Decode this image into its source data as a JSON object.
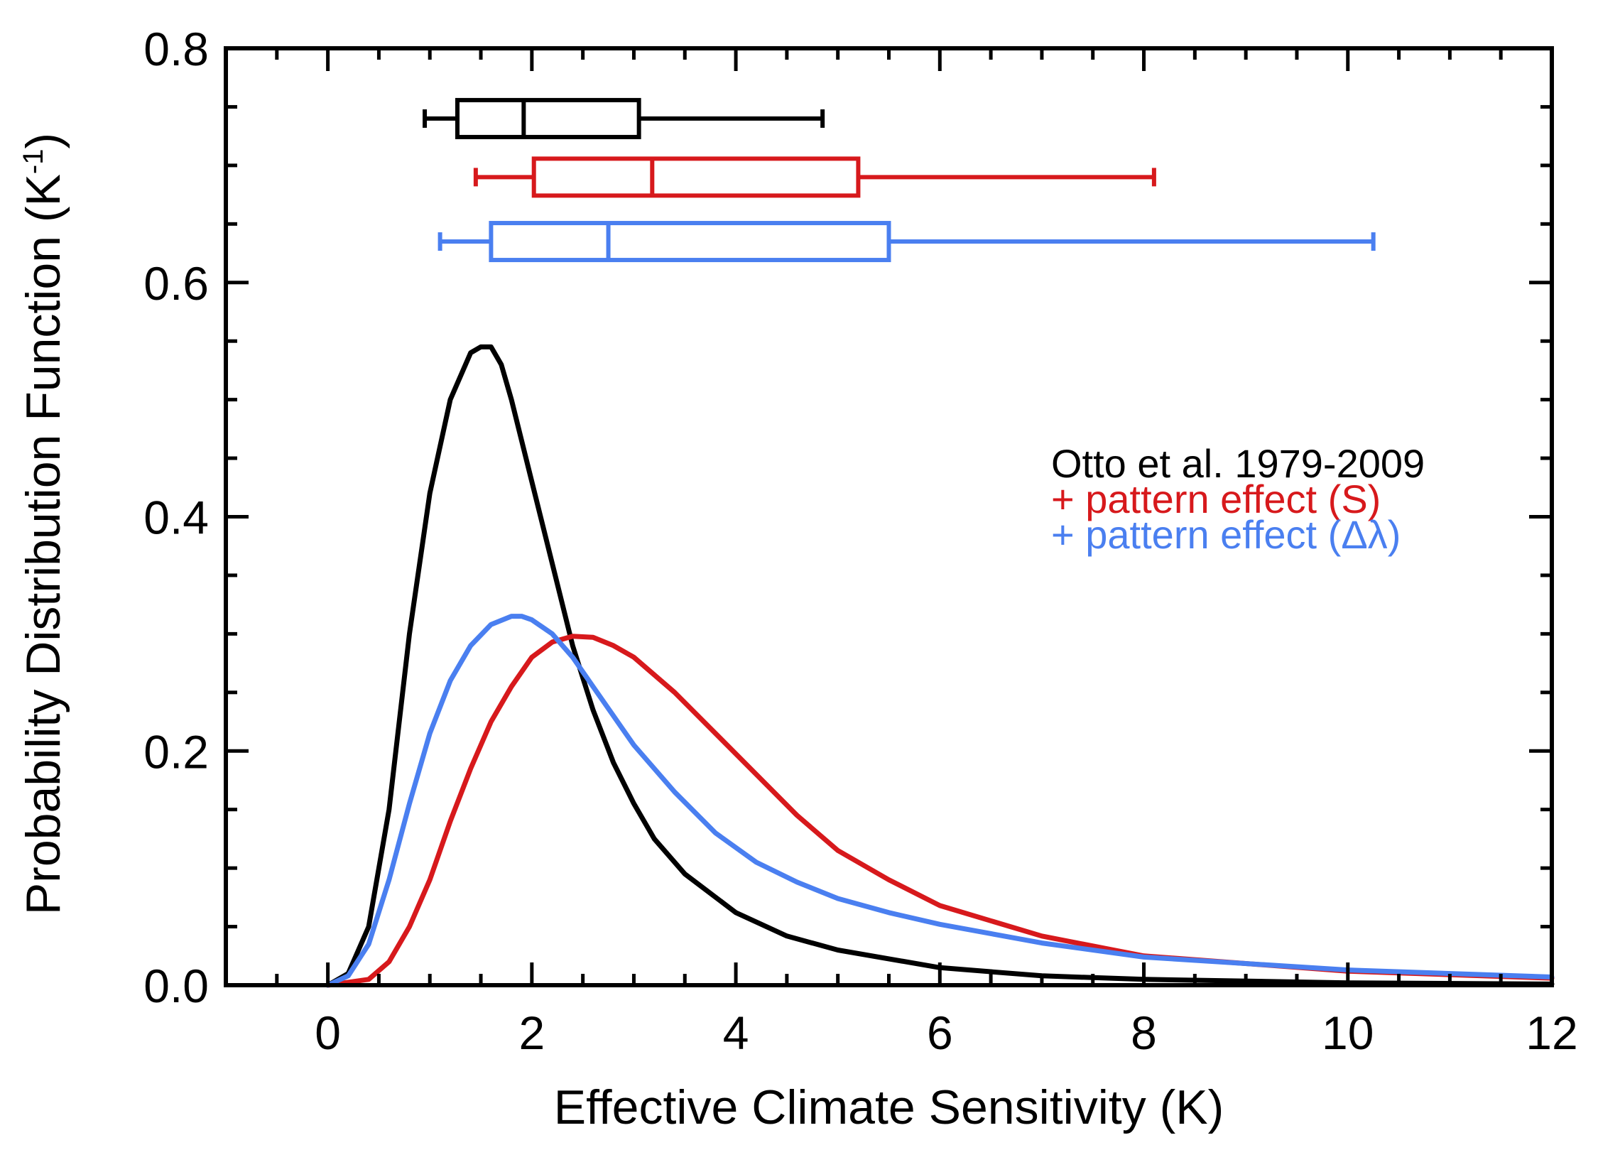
{
  "chart_data": {
    "type": "line",
    "title": "",
    "xlabel": "Effective Climate Sensitivity (K)",
    "ylabel": "Probability Distribution Function (K",
    "ylabel_sup": "-1",
    "ylabel_close": ")",
    "xlim": [
      -1,
      12
    ],
    "ylim": [
      0,
      0.8
    ],
    "xticks": [
      0,
      2,
      4,
      6,
      8,
      10,
      12
    ],
    "xtick_labels": [
      "0",
      "2",
      "4",
      "6",
      "8",
      "10",
      "12"
    ],
    "yticks": [
      0,
      0.2,
      0.4,
      0.6,
      0.8
    ],
    "ytick_labels": [
      "0.0",
      "0.2",
      "0.4",
      "0.6",
      "0.8"
    ],
    "grid": false,
    "legend_position": "right",
    "series": [
      {
        "name": "Otto et al. 1979-2009",
        "color": "#000000",
        "x": [
          0,
          0.2,
          0.4,
          0.6,
          0.8,
          1.0,
          1.2,
          1.4,
          1.5,
          1.6,
          1.7,
          1.8,
          2.0,
          2.2,
          2.4,
          2.6,
          2.8,
          3.0,
          3.2,
          3.5,
          4.0,
          4.5,
          5.0,
          6.0,
          7.0,
          8.0,
          10.0,
          12.0
        ],
        "y": [
          0,
          0.01,
          0.05,
          0.15,
          0.3,
          0.42,
          0.5,
          0.54,
          0.545,
          0.545,
          0.53,
          0.5,
          0.43,
          0.36,
          0.29,
          0.235,
          0.19,
          0.155,
          0.125,
          0.095,
          0.062,
          0.042,
          0.03,
          0.015,
          0.008,
          0.005,
          0.002,
          0.001
        ]
      },
      {
        "name": "+ pattern effect (S)",
        "color": "#d7191c",
        "x": [
          0,
          0.4,
          0.6,
          0.8,
          1.0,
          1.2,
          1.4,
          1.6,
          1.8,
          2.0,
          2.2,
          2.4,
          2.6,
          2.8,
          3.0,
          3.4,
          3.8,
          4.2,
          4.6,
          5.0,
          5.5,
          6.0,
          7.0,
          8.0,
          10.0,
          12.0
        ],
        "y": [
          0,
          0.005,
          0.02,
          0.05,
          0.09,
          0.14,
          0.185,
          0.225,
          0.255,
          0.28,
          0.293,
          0.298,
          0.297,
          0.29,
          0.28,
          0.25,
          0.215,
          0.18,
          0.145,
          0.115,
          0.09,
          0.068,
          0.042,
          0.025,
          0.012,
          0.006
        ]
      },
      {
        "name": "+ pattern effect (Δλ)",
        "color": "#4a7ff0",
        "x": [
          0,
          0.2,
          0.4,
          0.6,
          0.8,
          1.0,
          1.2,
          1.4,
          1.6,
          1.8,
          1.9,
          2.0,
          2.2,
          2.4,
          2.6,
          2.8,
          3.0,
          3.4,
          3.8,
          4.2,
          4.6,
          5.0,
          5.5,
          6.0,
          7.0,
          8.0,
          10.0,
          12.0
        ],
        "y": [
          0,
          0.008,
          0.035,
          0.09,
          0.155,
          0.215,
          0.26,
          0.29,
          0.308,
          0.315,
          0.315,
          0.312,
          0.3,
          0.28,
          0.255,
          0.23,
          0.205,
          0.165,
          0.13,
          0.105,
          0.088,
          0.074,
          0.062,
          0.052,
          0.036,
          0.024,
          0.013,
          0.007
        ]
      }
    ],
    "boxplots": [
      {
        "name": "Otto et al. 1979-2009",
        "color": "#000000",
        "y": 0.74,
        "min": 0.95,
        "q1": 1.27,
        "median": 1.92,
        "q3": 3.05,
        "max": 4.85
      },
      {
        "name": "+ pattern effect (S)",
        "color": "#d7191c",
        "y": 0.69,
        "min": 1.45,
        "q1": 2.02,
        "median": 3.18,
        "q3": 5.2,
        "max": 8.1
      },
      {
        "name": "+ pattern effect (Δλ)",
        "color": "#4a7ff0",
        "y": 0.635,
        "min": 1.1,
        "q1": 1.6,
        "median": 2.75,
        "q3": 5.5,
        "max": 10.25
      }
    ]
  }
}
